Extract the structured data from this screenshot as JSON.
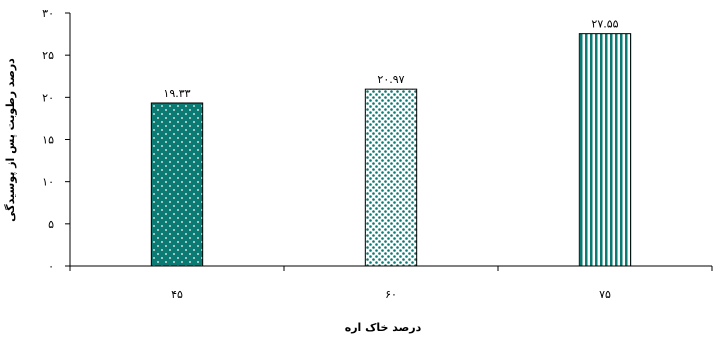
{
  "chart_data": {
    "type": "bar",
    "categories": [
      "۴۵",
      "۶۰",
      "۷۵"
    ],
    "values": [
      19.33,
      20.97,
      27.55
    ],
    "data_labels": [
      "۱۹.۳۳",
      "۲۰.۹۷",
      "۲۷.۵۵"
    ],
    "ylim": [
      0,
      30
    ],
    "yticks": [
      {
        "value": 0,
        "label": "۰"
      },
      {
        "value": 5,
        "label": "۵"
      },
      {
        "value": 10,
        "label": "۱۰"
      },
      {
        "value": 15,
        "label": "۱۵"
      },
      {
        "value": 20,
        "label": "۲۰"
      },
      {
        "value": 25,
        "label": "۲۵"
      },
      {
        "value": 30,
        "label": "۳۰"
      }
    ],
    "xlabel": "درصد خاک اره",
    "ylabel": "درصد رطوبت پس از پوسیدگی",
    "grid": false,
    "legend": "none",
    "bar_fill_colors": [
      "#0a7a72",
      "#0a7a72",
      "#0a7a72"
    ],
    "bar_patterns": [
      "small-dots",
      "dense-dots",
      "vertical-stripes"
    ]
  }
}
